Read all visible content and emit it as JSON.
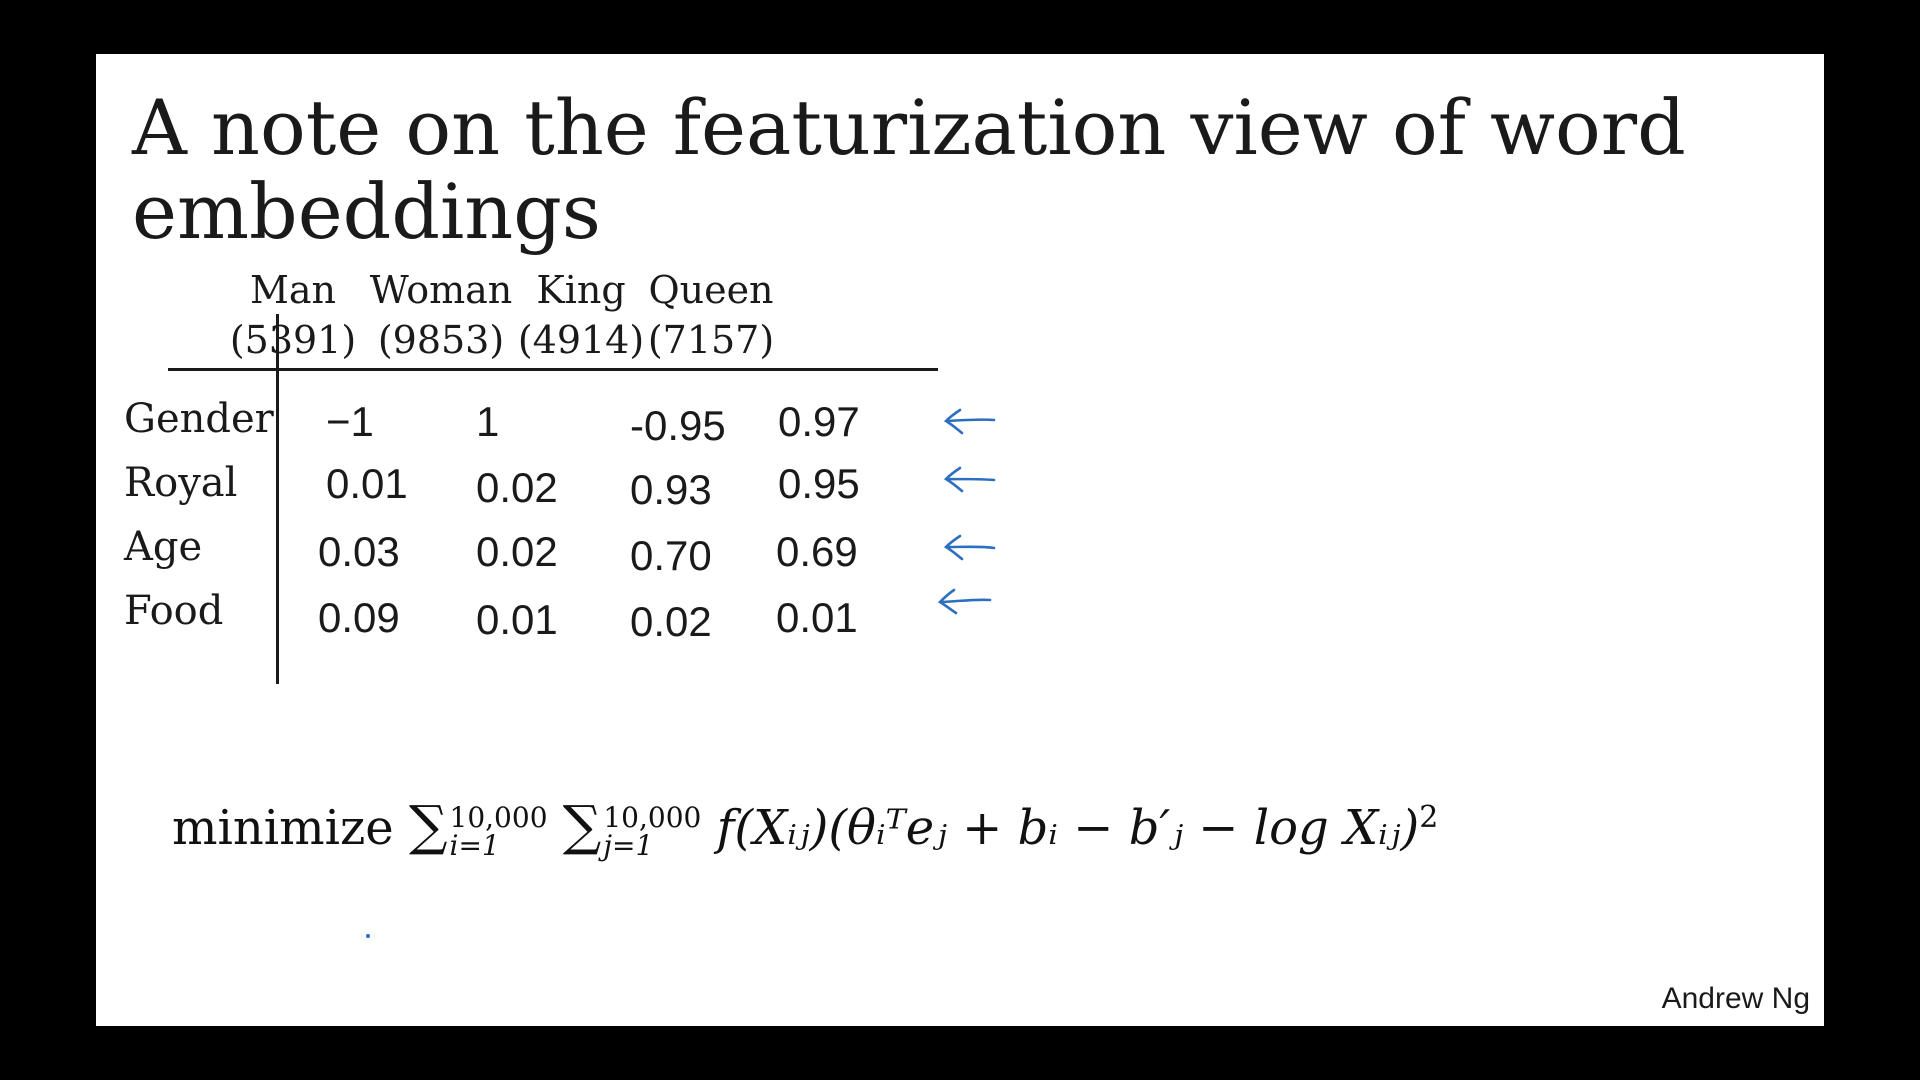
{
  "slide": {
    "title": "A note on the featurization view of word embeddings",
    "author": "Andrew Ng"
  },
  "table": {
    "columns": [
      {
        "word": "Man",
        "id": "(5391)"
      },
      {
        "word": "Woman",
        "id": "(9853)"
      },
      {
        "word": "King",
        "id": "(4914)"
      },
      {
        "word": "Queen",
        "id": "(7157)"
      }
    ],
    "rows": [
      {
        "label": "Gender",
        "values": [
          "−1",
          "1",
          "-0.95",
          "0.97"
        ]
      },
      {
        "label": "Royal",
        "values": [
          "0.01",
          "0.02",
          "0.93",
          "0.95"
        ]
      },
      {
        "label": "Age",
        "values": [
          "0.03",
          "0.02",
          "0.70",
          "0.69"
        ]
      },
      {
        "label": "Food",
        "values": [
          "0.09",
          "0.01",
          "0.02",
          "0.01"
        ]
      }
    ]
  },
  "formula": {
    "word": "minimize",
    "upper": "10,000",
    "lower_i": "i=1",
    "lower_j": "j=1",
    "body": "f(Xᵢⱼ)(θᵢᵀeⱼ + bᵢ − b′ⱼ − log Xᵢⱼ)",
    "power": "2"
  },
  "colors": {
    "arrow": "#2c6fbf",
    "background": "#000000",
    "slide": "#ffffff"
  }
}
